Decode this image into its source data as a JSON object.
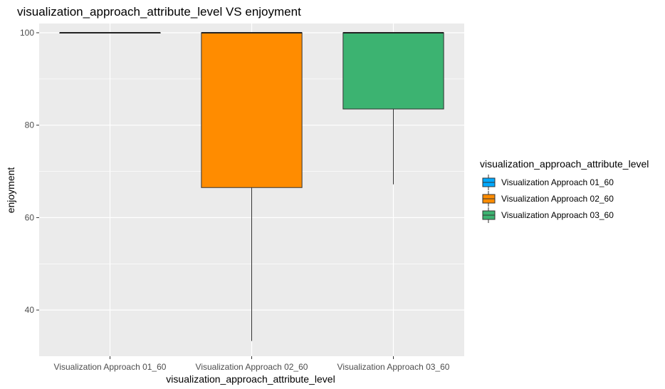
{
  "chart_data": {
    "type": "boxplot",
    "title": "visualization_approach_attribute_level VS enjoyment",
    "xlabel": "visualization_approach_attribute_level",
    "ylabel": "enjoyment",
    "ylim": [
      30,
      102
    ],
    "yticks": [
      40,
      60,
      80,
      100
    ],
    "grid": true,
    "categories": [
      "Visualization Approach 01_60",
      "Visualization Approach 02_60",
      "Visualization Approach 03_60"
    ],
    "boxes": [
      {
        "category": "Visualization Approach 01_60",
        "min": 100,
        "q1": 100,
        "median": 100,
        "q3": 100,
        "max": 100,
        "color": "#00a9ff"
      },
      {
        "category": "Visualization Approach 02_60",
        "min": 33.3,
        "q1": 66.5,
        "median": 100,
        "q3": 100,
        "max": 100,
        "color": "#ff8c00"
      },
      {
        "category": "Visualization Approach 03_60",
        "min": 67.2,
        "q1": 83.5,
        "median": 100,
        "q3": 100,
        "max": 100,
        "color": "#3cb371"
      }
    ],
    "legend": {
      "title": "visualization_approach_attribute_level",
      "position": "right",
      "entries": [
        "Visualization Approach 01_60",
        "Visualization Approach 02_60",
        "Visualization Approach 03_60"
      ]
    }
  }
}
